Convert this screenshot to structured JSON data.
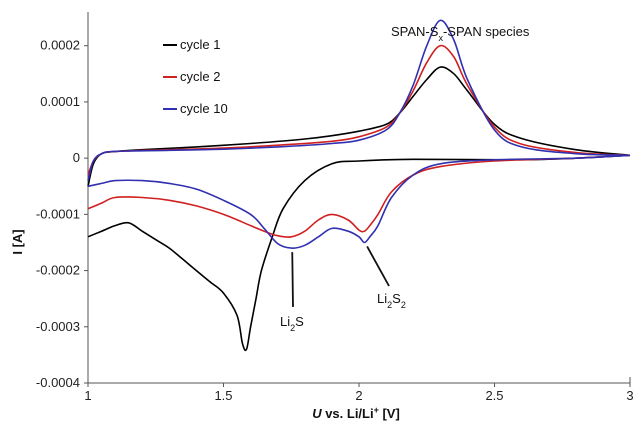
{
  "chart_data": {
    "type": "line",
    "title": "",
    "xlabel_prefix": "U",
    "xlabel_rest": " vs. Li/Li",
    "xlabel_sup": "+",
    "xlabel_unit": " [V]",
    "ylabel": "I [A]",
    "xlim": [
      1,
      3
    ],
    "ylim": [
      -0.0004,
      0.00026
    ],
    "x_ticks": [
      1,
      1.5,
      2,
      2.5,
      3
    ],
    "x_tick_labels": [
      "1",
      "1.5",
      "2",
      "2.5",
      "3"
    ],
    "y_ticks": [
      0.0002,
      0.0001,
      0,
      -0.0001,
      -0.0002,
      -0.0003,
      -0.0004
    ],
    "y_tick_labels": [
      "0.0002",
      "0.0001",
      "0",
      "-0.0001",
      "-0.0002",
      "-0.0003",
      "-0.0004"
    ],
    "legend_position": "top-left",
    "grid": false,
    "series": [
      {
        "name": "cycle 1",
        "color": "#000000",
        "anodic": [
          [
            1.0,
            -5e-05
          ],
          [
            1.02,
            -1e-05
          ],
          [
            1.05,
            8e-06
          ],
          [
            1.1,
            1.2e-05
          ],
          [
            1.2,
            1.5e-05
          ],
          [
            1.4,
            2e-05
          ],
          [
            1.6,
            2.6e-05
          ],
          [
            1.8,
            3.4e-05
          ],
          [
            1.9,
            4e-05
          ],
          [
            2.0,
            4.8e-05
          ],
          [
            2.1,
            6e-05
          ],
          [
            2.15,
            8e-05
          ],
          [
            2.2,
            0.00011
          ],
          [
            2.25,
            0.00014
          ],
          [
            2.3,
            0.000162
          ],
          [
            2.35,
            0.00015
          ],
          [
            2.4,
            0.00012
          ],
          [
            2.5,
            6e-05
          ],
          [
            2.6,
            3.5e-05
          ],
          [
            2.8,
            1.5e-05
          ],
          [
            3.0,
            5e-06
          ]
        ],
        "cathodic": [
          [
            3.0,
            5e-06
          ],
          [
            2.8,
            0.0
          ],
          [
            2.6,
            -3e-06
          ],
          [
            2.2,
            -2e-06
          ],
          [
            2.0,
            -5e-06
          ],
          [
            1.9,
            -1e-05
          ],
          [
            1.8,
            -4e-05
          ],
          [
            1.72,
            -9e-05
          ],
          [
            1.68,
            -0.00014
          ],
          [
            1.64,
            -0.0002
          ],
          [
            1.62,
            -0.00025
          ],
          [
            1.6,
            -0.0003
          ],
          [
            1.585,
            -0.00034
          ],
          [
            1.57,
            -0.00033
          ],
          [
            1.55,
            -0.00028
          ],
          [
            1.5,
            -0.00024
          ],
          [
            1.45,
            -0.00022
          ],
          [
            1.4,
            -0.0002
          ],
          [
            1.35,
            -0.00018
          ],
          [
            1.3,
            -0.00016
          ],
          [
            1.25,
            -0.000145
          ],
          [
            1.2,
            -0.00013
          ],
          [
            1.15,
            -0.000115
          ],
          [
            1.1,
            -0.00012
          ],
          [
            1.05,
            -0.00013
          ],
          [
            1.0,
            -0.00014
          ]
        ]
      },
      {
        "name": "cycle 2",
        "color": "#d02020",
        "anodic": [
          [
            1.0,
            -3e-05
          ],
          [
            1.02,
            -5e-06
          ],
          [
            1.05,
            8e-06
          ],
          [
            1.1,
            1.2e-05
          ],
          [
            1.3,
            1.5e-05
          ],
          [
            1.5,
            1.8e-05
          ],
          [
            1.7,
            2.3e-05
          ],
          [
            1.9,
            3e-05
          ],
          [
            2.0,
            3.8e-05
          ],
          [
            2.1,
            5.5e-05
          ],
          [
            2.15,
            8e-05
          ],
          [
            2.2,
            0.00012
          ],
          [
            2.25,
            0.00017
          ],
          [
            2.3,
            0.0002
          ],
          [
            2.35,
            0.00018
          ],
          [
            2.4,
            0.00013
          ],
          [
            2.5,
            5.5e-05
          ],
          [
            2.6,
            2.5e-05
          ],
          [
            2.8,
            1e-05
          ],
          [
            3.0,
            5e-06
          ]
        ],
        "cathodic": [
          [
            3.0,
            5e-06
          ],
          [
            2.8,
            0.0
          ],
          [
            2.5,
            -5e-06
          ],
          [
            2.3,
            -1.5e-05
          ],
          [
            2.2,
            -3e-05
          ],
          [
            2.12,
            -6e-05
          ],
          [
            2.07,
            -0.0001
          ],
          [
            2.04,
            -0.00012
          ],
          [
            2.02,
            -0.00013
          ],
          [
            2.0,
            -0.000128
          ],
          [
            1.96,
            -0.00011
          ],
          [
            1.9,
            -0.0001
          ],
          [
            1.85,
            -0.00011
          ],
          [
            1.8,
            -0.00013
          ],
          [
            1.75,
            -0.00014
          ],
          [
            1.7,
            -0.000138
          ],
          [
            1.65,
            -0.00013
          ],
          [
            1.6,
            -0.00012
          ],
          [
            1.5,
            -0.0001
          ],
          [
            1.4,
            -8.5e-05
          ],
          [
            1.3,
            -7.5e-05
          ],
          [
            1.2,
            -7e-05
          ],
          [
            1.1,
            -7e-05
          ],
          [
            1.05,
            -8e-05
          ],
          [
            1.0,
            -9e-05
          ]
        ]
      },
      {
        "name": "cycle 10",
        "color": "#3030b0",
        "anodic": [
          [
            1.0,
            -4e-05
          ],
          [
            1.02,
            -5e-06
          ],
          [
            1.05,
            8e-06
          ],
          [
            1.1,
            1.2e-05
          ],
          [
            1.3,
            1.4e-05
          ],
          [
            1.5,
            1.6e-05
          ],
          [
            1.7,
            2e-05
          ],
          [
            1.9,
            2.6e-05
          ],
          [
            2.0,
            3.2e-05
          ],
          [
            2.1,
            5e-05
          ],
          [
            2.15,
            8e-05
          ],
          [
            2.2,
            0.00013
          ],
          [
            2.25,
            0.0002
          ],
          [
            2.3,
            0.000245
          ],
          [
            2.35,
            0.00021
          ],
          [
            2.4,
            0.00014
          ],
          [
            2.5,
            5e-05
          ],
          [
            2.6,
            2e-05
          ],
          [
            2.8,
            8e-06
          ],
          [
            3.0,
            5e-06
          ]
        ],
        "cathodic": [
          [
            3.0,
            5e-06
          ],
          [
            2.8,
            0.0
          ],
          [
            2.5,
            -3e-06
          ],
          [
            2.3,
            -1e-05
          ],
          [
            2.2,
            -3e-05
          ],
          [
            2.12,
            -7e-05
          ],
          [
            2.07,
            -0.00012
          ],
          [
            2.04,
            -0.00014
          ],
          [
            2.02,
            -0.00015
          ],
          [
            2.0,
            -0.00014
          ],
          [
            1.96,
            -0.00013
          ],
          [
            1.9,
            -0.000125
          ],
          [
            1.85,
            -0.00014
          ],
          [
            1.8,
            -0.000155
          ],
          [
            1.75,
            -0.00016
          ],
          [
            1.7,
            -0.000152
          ],
          [
            1.65,
            -0.000125
          ],
          [
            1.6,
            -0.0001
          ],
          [
            1.5,
            -7.5e-05
          ],
          [
            1.4,
            -5.5e-05
          ],
          [
            1.3,
            -4.5e-05
          ],
          [
            1.2,
            -4e-05
          ],
          [
            1.1,
            -4e-05
          ],
          [
            1.05,
            -4.5e-05
          ],
          [
            1.0,
            -5e-05
          ]
        ]
      }
    ],
    "annotations": [
      {
        "text_main": "SPAN-S",
        "text_sub": "x",
        "text_tail": "-SPAN species",
        "x": 2.26,
        "y": 0.000245,
        "target_x": 2.3,
        "target_y": 0.000245
      },
      {
        "text_main": "Li",
        "text_sub": "2",
        "text_tail": "S",
        "x": 1.73,
        "y": -0.00025,
        "target_x": 1.75,
        "target_y": -0.00016
      },
      {
        "text_main": "Li",
        "text_sub": "2",
        "text_tail": "S",
        "text_sub2": "2",
        "x": 2.02,
        "y": -0.00025,
        "target_x": 2.03,
        "target_y": -0.00015
      }
    ]
  }
}
